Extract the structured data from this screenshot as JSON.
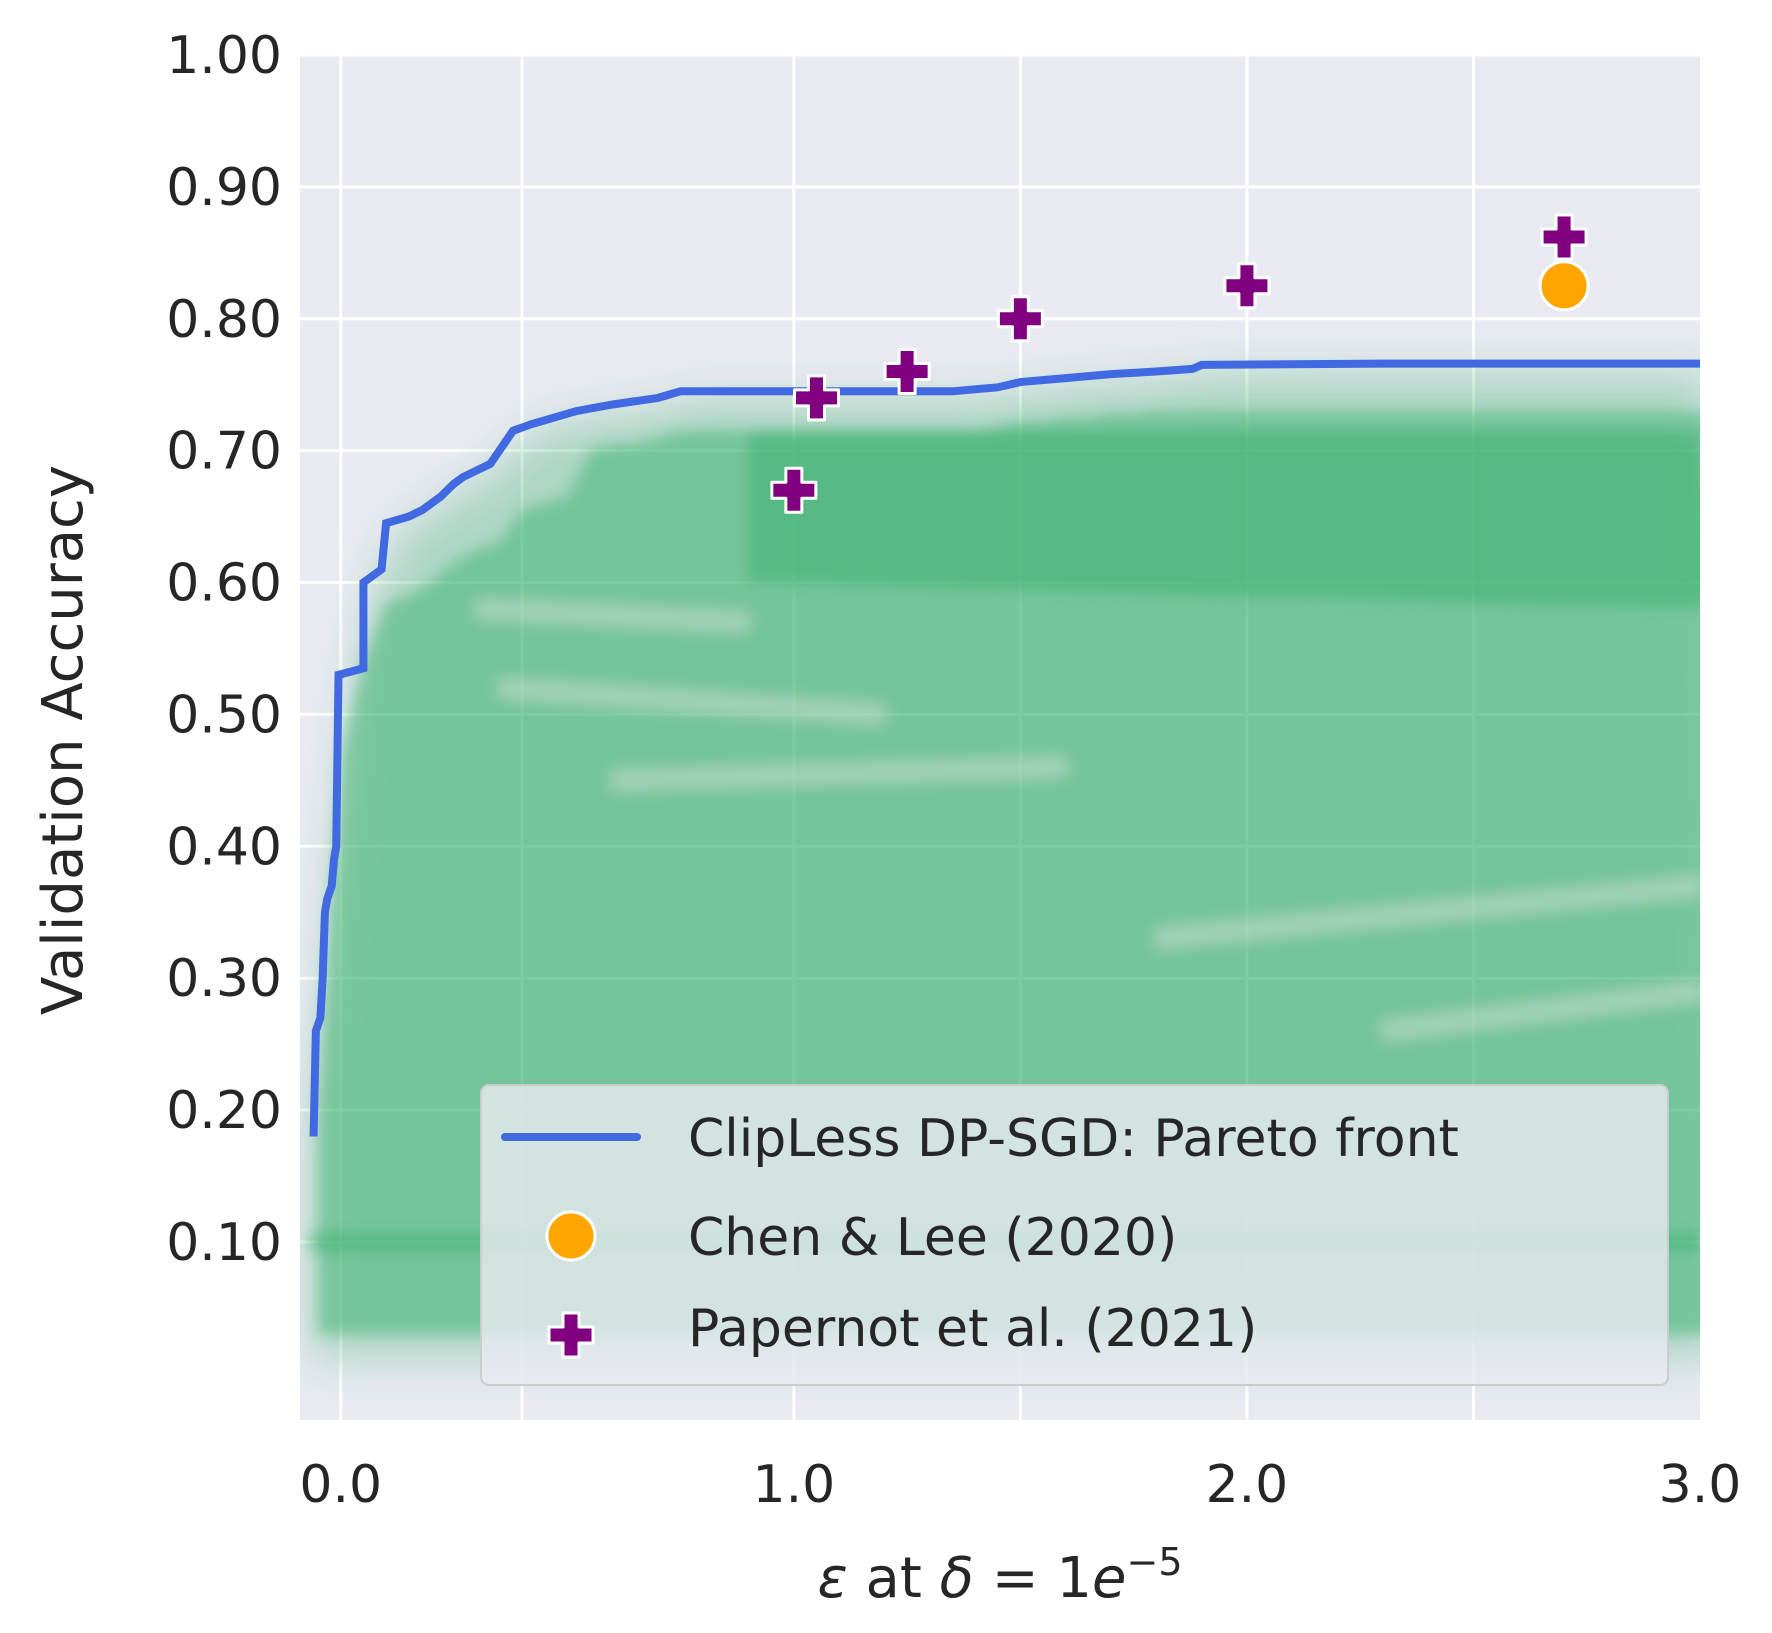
{
  "chart_data": {
    "type": "scatter",
    "title": "",
    "xlabel": "ε at δ = 1e⁻⁵",
    "xlabel_parts": {
      "eps": "ε",
      "at": " at ",
      "delta": "δ",
      "eq": " = 1",
      "e": "e",
      "exp": "−5"
    },
    "ylabel": "Validation Accuracy",
    "xlim": [
      -0.09,
      3.0
    ],
    "ylim": [
      -0.035,
      1.0
    ],
    "x_ticks": [
      0.0,
      1.0,
      2.0,
      3.0
    ],
    "x_tick_labels": [
      "0.0",
      "1.0",
      "2.0",
      "3.0"
    ],
    "x_minor_grid": [
      0.0,
      0.4,
      1.0,
      1.5,
      2.0,
      2.5
    ],
    "y_ticks": [
      0.1,
      0.2,
      0.3,
      0.4,
      0.5,
      0.6,
      0.7,
      0.8,
      0.9,
      1.0
    ],
    "y_tick_labels": [
      "0.10",
      "0.20",
      "0.30",
      "0.40",
      "0.50",
      "0.60",
      "0.70",
      "0.80",
      "0.90",
      "1.00"
    ],
    "grid": true,
    "legend_position": "lower-right",
    "colors": {
      "background": "#eaeaf2",
      "grid": "#ffffff",
      "pareto": "#4169e1",
      "chen": "#ffa500",
      "papernot": "#800080",
      "cloud": "#3cb371"
    },
    "series": [
      {
        "name": "ClipLess DP-SGD: Pareto front",
        "kind": "step-line",
        "points": [
          [
            -0.06,
            0.18
          ],
          [
            -0.055,
            0.26
          ],
          [
            -0.045,
            0.27
          ],
          [
            -0.04,
            0.3
          ],
          [
            -0.035,
            0.35
          ],
          [
            -0.03,
            0.36
          ],
          [
            -0.02,
            0.37
          ],
          [
            -0.015,
            0.39
          ],
          [
            -0.01,
            0.4
          ],
          [
            -0.005,
            0.53
          ],
          [
            0.05,
            0.535
          ],
          [
            0.05,
            0.6
          ],
          [
            0.07,
            0.605
          ],
          [
            0.09,
            0.61
          ],
          [
            0.1,
            0.645
          ],
          [
            0.15,
            0.65
          ],
          [
            0.18,
            0.655
          ],
          [
            0.2,
            0.66
          ],
          [
            0.22,
            0.665
          ],
          [
            0.25,
            0.675
          ],
          [
            0.27,
            0.68
          ],
          [
            0.3,
            0.685
          ],
          [
            0.33,
            0.69
          ],
          [
            0.36,
            0.705
          ],
          [
            0.38,
            0.715
          ],
          [
            0.42,
            0.72
          ],
          [
            0.47,
            0.725
          ],
          [
            0.52,
            0.73
          ],
          [
            0.6,
            0.735
          ],
          [
            0.7,
            0.74
          ],
          [
            0.75,
            0.745
          ],
          [
            1.0,
            0.745
          ],
          [
            1.35,
            0.745
          ],
          [
            1.45,
            0.748
          ],
          [
            1.5,
            0.752
          ],
          [
            1.6,
            0.755
          ],
          [
            1.7,
            0.758
          ],
          [
            1.8,
            0.76
          ],
          [
            1.88,
            0.762
          ],
          [
            1.9,
            0.765
          ],
          [
            2.3,
            0.766
          ],
          [
            3.0,
            0.766
          ]
        ]
      },
      {
        "name": "Chen & Lee (2020)",
        "kind": "marker-circle",
        "points": [
          [
            2.7,
            0.825
          ]
        ]
      },
      {
        "name": "Papernot et al. (2021)",
        "kind": "marker-plus",
        "points": [
          [
            1.0,
            0.67
          ],
          [
            1.05,
            0.74
          ],
          [
            1.25,
            0.76
          ],
          [
            1.5,
            0.8
          ],
          [
            2.0,
            0.825
          ],
          [
            2.7,
            0.862
          ]
        ]
      }
    ]
  }
}
